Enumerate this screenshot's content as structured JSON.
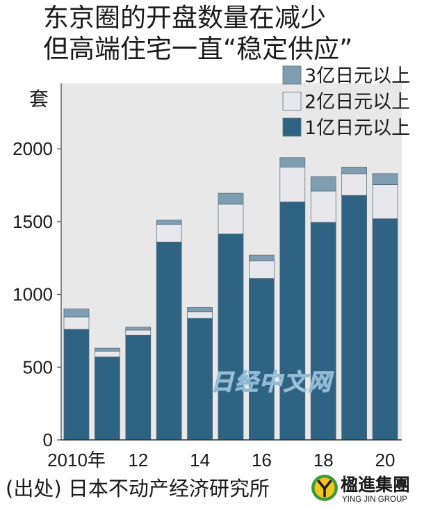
{
  "chart_data": {
    "type": "bar",
    "stacked": true,
    "title": "东京圈的开盘数量在减少",
    "subtitle": "但高端住宅一直“稳定供应”",
    "ylabel": "套",
    "categories": [
      2010,
      2011,
      2012,
      2013,
      2014,
      2015,
      2016,
      2017,
      2018,
      2019,
      2020
    ],
    "x_ticks": [
      {
        "x": 2010,
        "label": "2010年"
      },
      {
        "x": 2012,
        "label": "12"
      },
      {
        "x": 2014,
        "label": "14"
      },
      {
        "x": 2016,
        "label": "16"
      },
      {
        "x": 2018,
        "label": "18"
      },
      {
        "x": 2020,
        "label": "20"
      }
    ],
    "y_ticks": [
      0,
      500,
      1000,
      1500,
      2000
    ],
    "ylim": [
      0,
      2450
    ],
    "series": [
      {
        "name": "1亿日元以上",
        "color": "#2f6383",
        "values": [
          760,
          570,
          720,
          1360,
          835,
          1415,
          1110,
          1635,
          1495,
          1680,
          1520
        ]
      },
      {
        "name": "2亿日元以上",
        "color": "#e7e7ec",
        "values": [
          85,
          40,
          35,
          120,
          45,
          205,
          120,
          240,
          215,
          150,
          235
        ]
      },
      {
        "name": "3亿日元以上",
        "color": "#7f9db1",
        "values": [
          55,
          20,
          20,
          30,
          30,
          75,
          40,
          65,
          100,
          45,
          75
        ]
      }
    ],
    "legend_position": "top-right",
    "grid": false,
    "plot_background": "#e8e8e8"
  },
  "watermark": "日经中文网",
  "footer": {
    "source": "(出处) 日本不动产经济研究所",
    "logo": {
      "name_cn": "楹進集團",
      "name_en": "YING JIN GROUP",
      "colors": {
        "ring": "#3d9a3a",
        "core": "#f3c51e",
        "mark": "#1d1d1d"
      }
    }
  }
}
